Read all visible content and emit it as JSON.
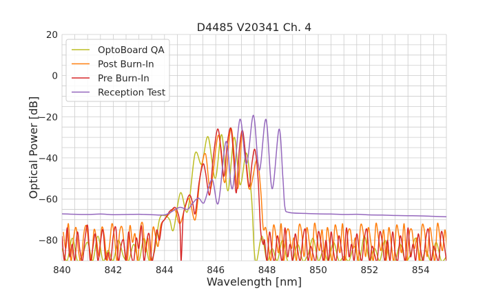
{
  "chart_data": {
    "type": "line",
    "title": "D4485 V20341 Ch. 4",
    "xlabel": "Wavelength [nm]",
    "ylabel": "Optical Power [dB]",
    "xlim": [
      840,
      855
    ],
    "ylim": [
      -90,
      20
    ],
    "xticks": [
      840,
      842,
      844,
      846,
      848,
      850,
      852,
      854
    ],
    "yticks": [
      20,
      0,
      -20,
      -40,
      -60,
      -80
    ],
    "ytick_labels": [
      "20",
      "0",
      "−20",
      "−40",
      "−60",
      "−80"
    ],
    "grid": true,
    "legend_position": "top-left",
    "series": [
      {
        "name": "OptoBoard QA",
        "color": "#bcbd22",
        "segments": [
          {
            "x0": 840.0,
            "dx": 0.2,
            "y": [
              -84,
              -90,
              -79,
              -90,
              -87,
              -81,
              -90,
              -78,
              -90,
              -85,
              -90,
              -80,
              -88,
              -90,
              -82,
              -90,
              -79,
              -90,
              -86
            ]
          },
          {
            "points": [
              [
                843.8,
                -70
              ],
              [
                844.0,
                -68
              ],
              [
                844.2,
                -70
              ],
              [
                844.35,
                -75
              ],
              [
                844.62,
                -57
              ],
              [
                844.9,
                -66
              ],
              [
                845.19,
                -38
              ],
              [
                845.45,
                -43
              ],
              [
                845.7,
                -29.7
              ],
              [
                845.98,
                -50
              ],
              [
                846.23,
                -28.7
              ],
              [
                846.47,
                -56
              ],
              [
                846.72,
                -30
              ],
              [
                846.95,
                -53
              ],
              [
                847.2,
                -37.7
              ],
              [
                847.4,
                -60
              ],
              [
                847.5,
                -85
              ]
            ]
          },
          {
            "x0": 847.6,
            "dx": 0.2,
            "y": [
              -90,
              -78,
              -90,
              -84,
              -90,
              -80,
              -90,
              -90,
              -82,
              -90,
              -87,
              -79,
              -90,
              -85,
              -90,
              -81,
              -90,
              -88,
              -90,
              -83,
              -90,
              -78,
              -90,
              -84,
              -90,
              -80,
              -90,
              -90,
              -82,
              -90,
              -87,
              -79,
              -90,
              -85,
              -90,
              -81,
              -90,
              -88
            ]
          }
        ]
      },
      {
        "name": "Post Burn-In",
        "color": "#ff7f0e",
        "segments": [
          {
            "x0": 840.05,
            "dx": 0.1,
            "y": [
              -76,
              -84,
              -72,
              -90,
              -79,
              -74,
              -86,
              -90,
              -77,
              -73,
              -82,
              -90,
              -75,
              -80,
              -88,
              -74,
              -78,
              -90,
              -83,
              -72,
              -79,
              -90,
              -76,
              -74,
              -85,
              -90,
              -73,
              -81,
              -77,
              -90,
              -75,
              -72,
              -86,
              -79,
              -90,
              -74,
              -78,
              -83,
              -73
            ]
          },
          {
            "points": [
              [
                844.0,
                -70
              ],
              [
                844.2,
                -67
              ],
              [
                844.4,
                -65
              ],
              [
                844.6,
                -72
              ],
              [
                844.8,
                -64
              ],
              [
                844.97,
                -60
              ],
              [
                845.2,
                -70
              ],
              [
                845.4,
                -48
              ],
              [
                845.6,
                -38
              ],
              [
                845.8,
                -55
              ],
              [
                846.1,
                -29
              ],
              [
                846.35,
                -52
              ],
              [
                846.6,
                -25.5
              ],
              [
                846.85,
                -55
              ],
              [
                847.05,
                -28
              ],
              [
                847.3,
                -55
              ],
              [
                847.6,
                -41
              ],
              [
                847.75,
                -55
              ],
              [
                847.85,
                -74
              ]
            ]
          },
          {
            "x0": 847.95,
            "dx": 0.1,
            "y": [
              -74,
              -82,
              -90,
              -73,
              -78,
              -86,
              -72,
              -90,
              -77,
              -75,
              -84,
              -79,
              -90,
              -73,
              -76,
              -88,
              -74,
              -81,
              -90,
              -72,
              -79,
              -85,
              -75,
              -90,
              -74,
              -82,
              -90,
              -73,
              -78,
              -86,
              -72,
              -90,
              -77,
              -75,
              -84,
              -79,
              -90,
              -73,
              -76,
              -88,
              -74,
              -81,
              -90,
              -72,
              -79,
              -85,
              -75,
              -90,
              -74,
              -82,
              -90,
              -73,
              -78,
              -86,
              -72,
              -90,
              -77,
              -75,
              -84,
              -79,
              -90,
              -73,
              -76,
              -88,
              -74,
              -81,
              -90,
              -72,
              -79,
              -85,
              -75,
              -90
            ]
          }
        ]
      },
      {
        "name": "Pre Burn-In",
        "color": "#d62728",
        "segments": [
          {
            "x0": 840.0,
            "dx": 0.1,
            "y": [
              -78,
              -90,
              -74,
              -88,
              -82,
              -90,
              -76,
              -85,
              -90,
              -79,
              -73,
              -90,
              -84,
              -77,
              -90,
              -81,
              -75,
              -89,
              -86,
              -90,
              -78,
              -74,
              -90,
              -83,
              -80,
              -90,
              -76,
              -87,
              -90,
              -79,
              -84,
              -73,
              -90,
              -81,
              -77,
              -90,
              -85,
              -75,
              -80
            ]
          },
          {
            "points": [
              [
                843.9,
                -72
              ],
              [
                844.0,
                -70
              ],
              [
                844.1,
                -68
              ],
              [
                844.2,
                -66
              ],
              [
                844.3,
                -65
              ],
              [
                844.4,
                -64
              ],
              [
                844.5,
                -66
              ],
              [
                844.6,
                -72
              ],
              [
                844.65,
                -90
              ],
              [
                844.72,
                -70
              ],
              [
                844.8,
                -64
              ],
              [
                844.97,
                -58
              ],
              [
                845.1,
                -62
              ],
              [
                845.2,
                -67
              ],
              [
                845.35,
                -52
              ],
              [
                845.5,
                -43
              ],
              [
                845.6,
                -47
              ],
              [
                845.76,
                -58
              ],
              [
                845.9,
                -40
              ],
              [
                846.07,
                -26
              ],
              [
                846.2,
                -35
              ],
              [
                846.32,
                -49
              ],
              [
                846.45,
                -33
              ],
              [
                846.59,
                -25.6
              ],
              [
                846.7,
                -40
              ],
              [
                846.8,
                -57
              ],
              [
                846.92,
                -36
              ],
              [
                847.04,
                -26.6
              ],
              [
                847.15,
                -37
              ],
              [
                847.3,
                -54
              ],
              [
                847.42,
                -42
              ],
              [
                847.53,
                -36
              ],
              [
                847.65,
                -50
              ],
              [
                847.75,
                -75
              ],
              [
                847.85,
                -82
              ]
            ]
          },
          {
            "x0": 847.9,
            "dx": 0.1,
            "y": [
              -80,
              -90,
              -76,
              -86,
              -90,
              -78,
              -84,
              -90,
              -74,
              -88,
              -82,
              -90,
              -77,
              -85,
              -90,
              -79,
              -75,
              -90,
              -83,
              -87,
              -90,
              -76,
              -81,
              -90,
              -80,
              -90,
              -76,
              -86,
              -90,
              -78,
              -84,
              -90,
              -74,
              -88,
              -82,
              -90,
              -77,
              -85,
              -90,
              -79,
              -75,
              -90,
              -83,
              -87,
              -90,
              -76,
              -81,
              -90,
              -80,
              -90,
              -76,
              -86,
              -90,
              -78,
              -84,
              -90,
              -74,
              -88,
              -82,
              -90,
              -77,
              -85,
              -90,
              -79,
              -75,
              -90,
              -83,
              -87,
              -90,
              -76,
              -81,
              -90
            ]
          }
        ]
      },
      {
        "name": "Reception Test",
        "color": "#9467bd",
        "segments": [
          {
            "points": [
              [
                840,
                -67.2
              ],
              [
                840.5,
                -67.4
              ],
              [
                841,
                -67.5
              ],
              [
                841.5,
                -67.3
              ],
              [
                842,
                -67.6
              ],
              [
                842.5,
                -67.5
              ],
              [
                843,
                -67.4
              ],
              [
                843.5,
                -67.6
              ],
              [
                844,
                -67.7
              ],
              [
                844.3,
                -66
              ],
              [
                844.6,
                -64
              ],
              [
                844.9,
                -65
              ],
              [
                845.1,
                -62
              ],
              [
                845.32,
                -59.5
              ],
              [
                845.5,
                -62
              ],
              [
                845.6,
                -60
              ],
              [
                845.86,
                -50.5
              ],
              [
                846.1,
                -62
              ],
              [
                846.4,
                -32
              ],
              [
                846.65,
                -55
              ],
              [
                846.94,
                -21.3
              ],
              [
                847.2,
                -43
              ],
              [
                847.47,
                -19.3
              ],
              [
                847.7,
                -46
              ],
              [
                847.96,
                -21.3
              ],
              [
                848.2,
                -55
              ],
              [
                848.47,
                -26
              ],
              [
                848.62,
                -50
              ],
              [
                848.7,
                -64
              ],
              [
                848.85,
                -66.5
              ],
              [
                849.5,
                -67
              ],
              [
                850,
                -67.2
              ],
              [
                850.5,
                -67.3
              ],
              [
                851,
                -67.5
              ],
              [
                851.5,
                -67.4
              ],
              [
                852,
                -67.7
              ],
              [
                852.5,
                -67.8
              ],
              [
                853,
                -68
              ],
              [
                853.5,
                -68.1
              ],
              [
                854,
                -68.2
              ],
              [
                854.5,
                -68.4
              ],
              [
                855,
                -68.6
              ]
            ]
          }
        ]
      }
    ]
  }
}
